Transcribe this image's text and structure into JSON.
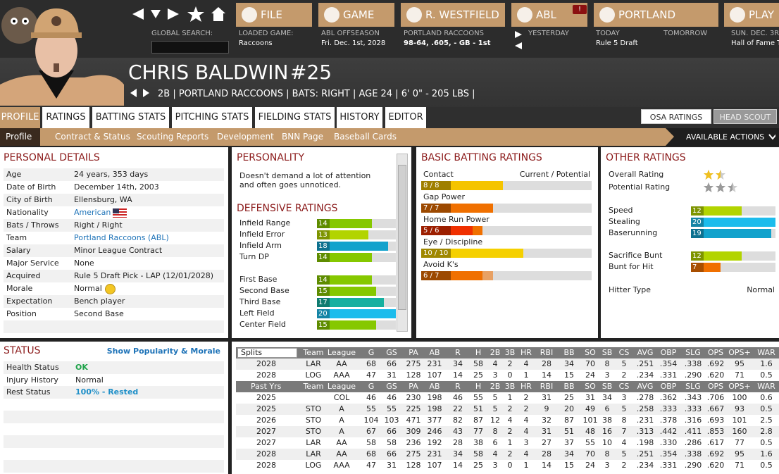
{
  "nav": {
    "buttons": [
      "FILE",
      "GAME",
      "R. WESTFIELD",
      "ABL",
      "PORTLAND",
      "PLAY"
    ],
    "badge": "!",
    "info": [
      {
        "label": "GLOBAL SEARCH:"
      },
      {
        "label": "LOADED GAME:",
        "value": "Raccoons"
      },
      {
        "label": "ABL OFFSEASON",
        "value": "Fri. Dec. 1st, 2028"
      },
      {
        "label": "PORTLAND RACCOONS",
        "value": "98-64, .605, - GB - 1st"
      },
      {
        "label": "YESTERDAY"
      },
      {
        "label": "TODAY",
        "value": "Rule 5 Draft"
      },
      {
        "label": "TOMORROW"
      },
      {
        "label": "SUN. DEC. 3R",
        "value": "Hall of Fame T"
      }
    ]
  },
  "player": {
    "name": "CHRIS BALDWIN",
    "number": "#25",
    "meta": "2B | PORTLAND RACCOONS | BATS: RIGHT | AGE 24 | 6' 0\" - 205 LBS |"
  },
  "tabs": [
    "PROFILE",
    "RATINGS",
    "BATTING STATS",
    "PITCHING STATS",
    "FIELDING STATS",
    "HISTORY",
    "EDITOR"
  ],
  "subtabs": [
    "Profile",
    "Contract & Status",
    "Scouting Reports",
    "Development",
    "BNN Page",
    "Baseball Cards"
  ],
  "toggles": [
    "OSA RATINGS",
    "HEAD SCOUT"
  ],
  "actions": "AVAILABLE ACTIONS",
  "personal_details": {
    "title": "PERSONAL DETAILS",
    "rows": [
      [
        "Age",
        "24 years, 353 days"
      ],
      [
        "Date of Birth",
        "December 14th, 2003"
      ],
      [
        "City of Birth",
        "Ellensburg, WA"
      ],
      [
        "Nationality",
        "American"
      ],
      [
        "Bats / Throws",
        "Right / Right"
      ],
      [
        "Team",
        "Portland Raccoons (ABL)"
      ],
      [
        "Salary",
        "Minor League Contract"
      ],
      [
        "Major Service",
        "None"
      ],
      [
        "Acquired",
        "Rule 5 Draft Pick - LAP (12/01/2028)"
      ],
      [
        "Morale",
        "Normal"
      ],
      [
        "Expectation",
        "Bench player"
      ],
      [
        "Position",
        "Second Base"
      ]
    ]
  },
  "personality": {
    "title": "PERSONALITY",
    "text": "Doesn't demand a lot of attention and often goes unnoticed."
  },
  "defensive_ratings": {
    "title": "DEFENSIVE RATINGS",
    "groups": [
      [
        {
          "label": "Infield Range",
          "value": 14,
          "color": "#86c800"
        },
        {
          "label": "Infield Error",
          "value": 13,
          "color": "#b2d400"
        },
        {
          "label": "Infield Arm",
          "value": 18,
          "color": "#12a2cc"
        },
        {
          "label": "Turn DP",
          "value": 14,
          "color": "#86c800"
        }
      ],
      [
        {
          "label": "First Base",
          "value": 14,
          "color": "#86c800"
        },
        {
          "label": "Second Base",
          "value": 15,
          "color": "#86c800"
        },
        {
          "label": "Third Base",
          "value": 17,
          "color": "#16b0a0"
        },
        {
          "label": "Left Field",
          "value": 20,
          "color": "#1cbcec"
        },
        {
          "label": "Center Field",
          "value": 15,
          "color": "#86c800"
        }
      ]
    ]
  },
  "batting_ratings": {
    "title": "BASIC BATTING RATINGS",
    "column_header": "Current / Potential",
    "rows": [
      {
        "label": "Contact",
        "current": 8,
        "potential": 8,
        "value_label": "8 / 8",
        "color": "#f5c400"
      },
      {
        "label": "Gap Power",
        "current": 7,
        "potential": 7,
        "value_label": "7 / 7",
        "color": "#f07000"
      },
      {
        "label": "Home Run Power",
        "current": 5,
        "potential": 6,
        "value_label": "5 / 6",
        "color": "#f03000",
        "potential_color": "#f07000"
      },
      {
        "label": "Eye / Discipline",
        "current": 10,
        "potential": 10,
        "value_label": "10 / 10",
        "color": "#f5d000"
      },
      {
        "label": "Avoid K's",
        "current": 6,
        "potential": 7,
        "value_label": "6 / 7",
        "color": "#f07000"
      }
    ]
  },
  "other_ratings": {
    "title": "OTHER RATINGS",
    "stars": [
      {
        "label": "Overall Rating",
        "value": 1.5,
        "color": "#f0c020"
      },
      {
        "label": "Potential Rating",
        "value": 2.5,
        "color": "#9a9a9a"
      }
    ],
    "groups": [
      [
        {
          "label": "Speed",
          "value": 12,
          "color": "#b2d400"
        },
        {
          "label": "Stealing",
          "value": 20,
          "color": "#1cbcec"
        },
        {
          "label": "Baserunning",
          "value": 19,
          "color": "#12a2cc"
        }
      ],
      [
        {
          "label": "Sacrifice Bunt",
          "value": 12,
          "color": "#b2d400"
        },
        {
          "label": "Bunt for Hit",
          "value": 7,
          "color": "#f07000"
        }
      ]
    ],
    "hitter_type": [
      "Hitter Type",
      "Normal"
    ]
  },
  "status": {
    "title": "STATUS",
    "link": "Show Popularity & Morale",
    "rows": [
      [
        "Health Status",
        "OK"
      ],
      [
        "Injury History",
        "Normal"
      ],
      [
        "Rest Status",
        "100% - Rested"
      ]
    ]
  },
  "stats": {
    "header": [
      "Splits",
      "Team",
      "League",
      "G",
      "GS",
      "PA",
      "AB",
      "R",
      "H",
      "2B",
      "3B",
      "HR",
      "RBI",
      "BB",
      "SO",
      "SB",
      "CS",
      "AVG",
      "OBP",
      "SLG",
      "OPS",
      "OPS+",
      "WAR"
    ],
    "current": [
      [
        "2028",
        "LAR",
        "AA",
        "68",
        "66",
        "275",
        "231",
        "34",
        "58",
        "4",
        "2",
        "4",
        "28",
        "34",
        "70",
        "8",
        "5",
        ".251",
        ".354",
        ".338",
        ".692",
        "95",
        "1.6"
      ],
      [
        "2028",
        "LOG",
        "AAA",
        "47",
        "31",
        "128",
        "107",
        "14",
        "25",
        "3",
        "0",
        "1",
        "14",
        "15",
        "24",
        "3",
        "2",
        ".234",
        ".331",
        ".290",
        ".620",
        "71",
        "0.5"
      ]
    ],
    "past_header": [
      "Past Yrs.",
      "Team",
      "League",
      "G",
      "GS",
      "PA",
      "AB",
      "R",
      "H",
      "2B",
      "3B",
      "HR",
      "RBI",
      "BB",
      "SO",
      "SB",
      "CS",
      "AVG",
      "OBP",
      "SLG",
      "OPS",
      "OPS+",
      "WAR"
    ],
    "past": [
      [
        "2025",
        "",
        "COL",
        "46",
        "46",
        "230",
        "198",
        "46",
        "55",
        "5",
        "1",
        "2",
        "31",
        "25",
        "31",
        "34",
        "3",
        ".278",
        ".362",
        ".343",
        ".706",
        "100",
        "0.6"
      ],
      [
        "2025",
        "STO",
        "A",
        "55",
        "55",
        "225",
        "198",
        "22",
        "51",
        "5",
        "2",
        "2",
        "9",
        "20",
        "49",
        "6",
        "5",
        ".258",
        ".333",
        ".333",
        ".667",
        "93",
        "0.5"
      ],
      [
        "2026",
        "STO",
        "A",
        "104",
        "103",
        "471",
        "377",
        "82",
        "87",
        "12",
        "4",
        "4",
        "32",
        "87",
        "101",
        "38",
        "8",
        ".231",
        ".378",
        ".316",
        ".693",
        "101",
        "2.5"
      ],
      [
        "2027",
        "STO",
        "A",
        "67",
        "66",
        "309",
        "246",
        "43",
        "77",
        "8",
        "2",
        "4",
        "31",
        "51",
        "48",
        "16",
        "7",
        ".313",
        ".442",
        ".411",
        ".853",
        "160",
        "2.8"
      ],
      [
        "2027",
        "LAR",
        "AA",
        "58",
        "58",
        "236",
        "192",
        "28",
        "38",
        "6",
        "1",
        "3",
        "27",
        "37",
        "55",
        "10",
        "4",
        ".198",
        ".330",
        ".286",
        ".617",
        "77",
        "0.5"
      ],
      [
        "2028",
        "LAR",
        "AA",
        "68",
        "66",
        "275",
        "231",
        "34",
        "58",
        "4",
        "2",
        "4",
        "28",
        "34",
        "70",
        "8",
        "5",
        ".251",
        ".354",
        ".338",
        ".692",
        "95",
        "1.6"
      ],
      [
        "2028",
        "LOG",
        "AAA",
        "47",
        "31",
        "128",
        "107",
        "14",
        "25",
        "3",
        "0",
        "1",
        "14",
        "15",
        "24",
        "3",
        "2",
        ".234",
        ".331",
        ".290",
        ".620",
        "71",
        "0.5"
      ]
    ]
  }
}
